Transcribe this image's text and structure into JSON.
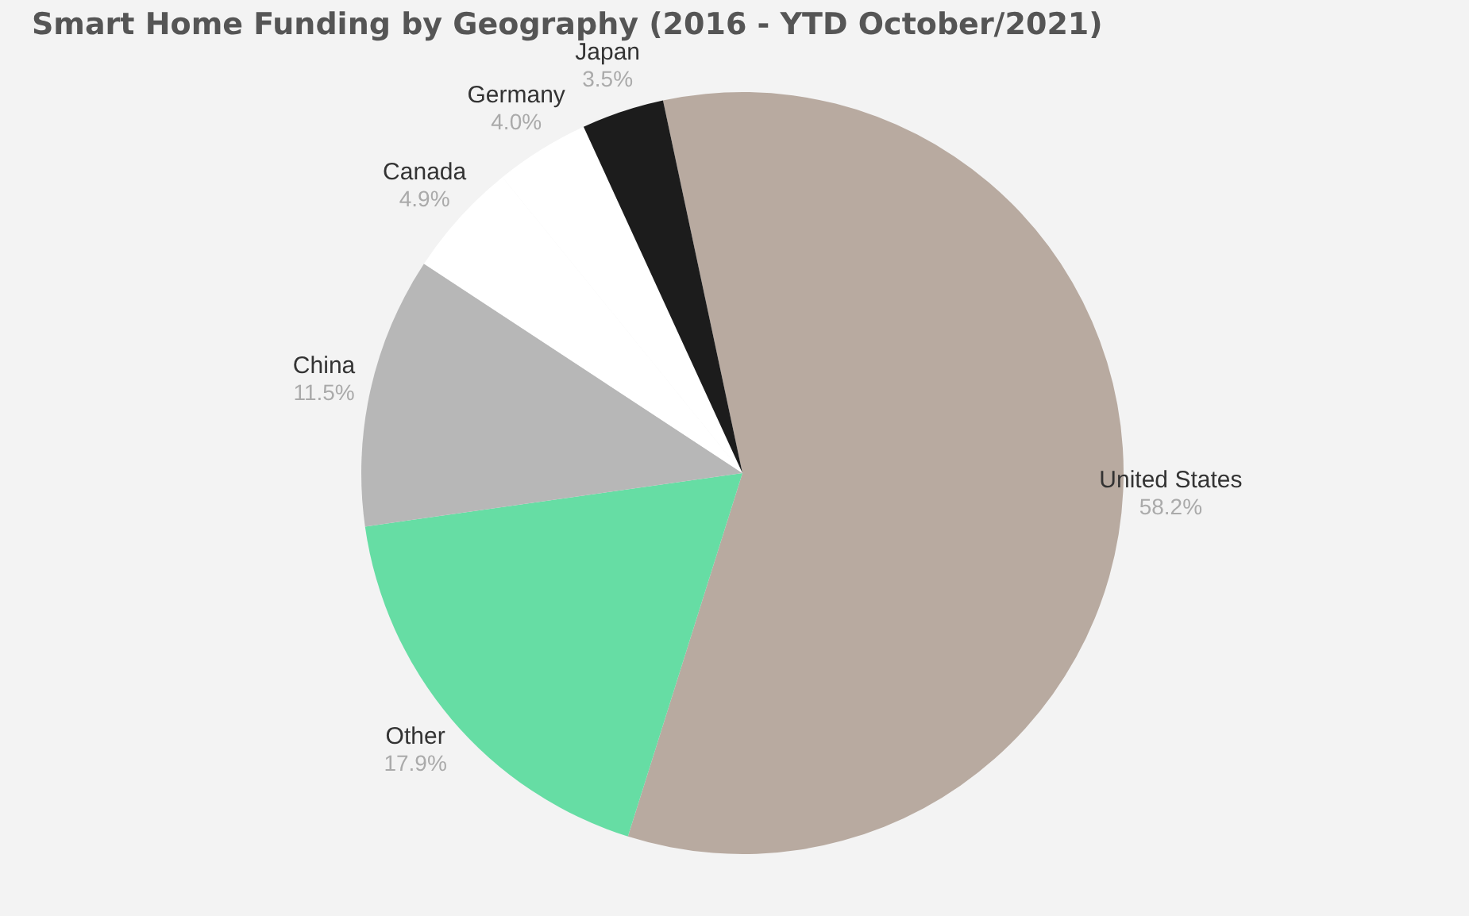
{
  "chart_data": {
    "type": "pie",
    "title": "Smart Home Funding by Geography (2016 - YTD October/2021)",
    "categories": [
      "United States",
      "Other",
      "China",
      "Canada",
      "Germany",
      "Japan"
    ],
    "values": [
      58.2,
      17.9,
      11.5,
      4.9,
      4.0,
      3.5
    ],
    "value_labels": [
      "58.2%",
      "17.9%",
      "11.5%",
      "4.9%",
      "4.0%",
      "3.5%"
    ],
    "colors": [
      "#b8aaa0",
      "#66dda4",
      "#b7b7b7",
      "#ffffff",
      "#ffffff",
      "#1c1c1c"
    ]
  }
}
